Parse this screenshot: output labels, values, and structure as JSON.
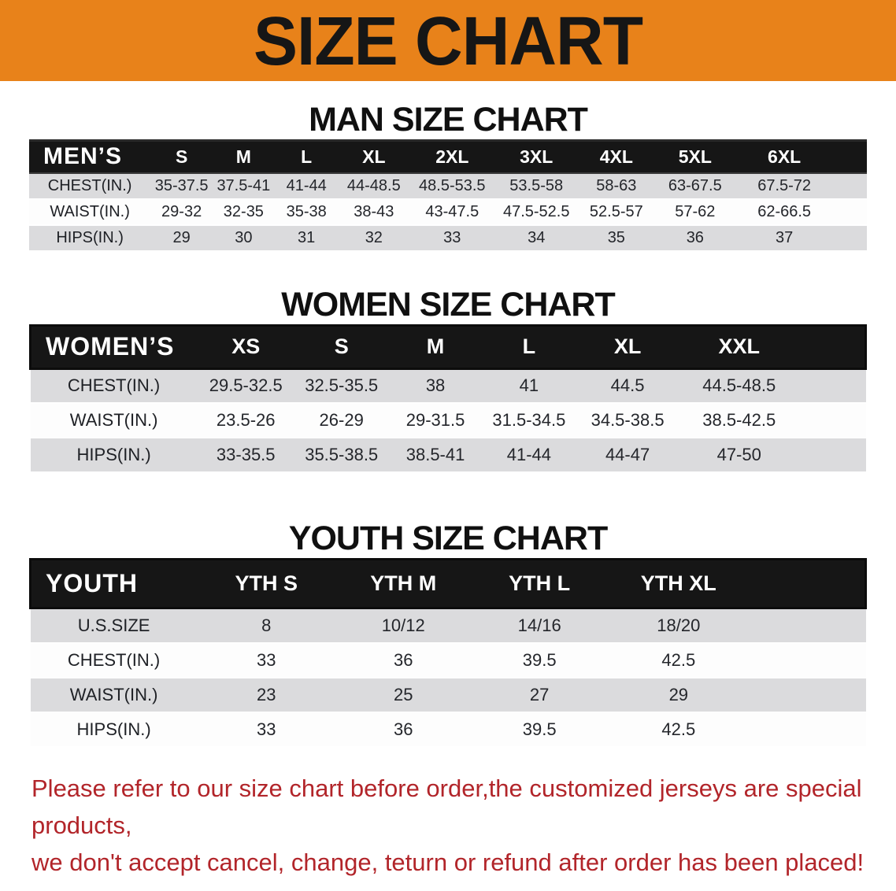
{
  "banner": {
    "title": "SIZE CHART"
  },
  "sections": [
    {
      "heading": "MAN SIZE CHART",
      "table": {
        "corner_label": "MEN’S",
        "columns": [
          "S",
          "M",
          "L",
          "XL",
          "2XL",
          "3XL",
          "4XL",
          "5XL",
          "6XL"
        ],
        "rows": [
          {
            "label": "CHEST(IN.)",
            "values": [
              "35-37.5",
              "37.5-41",
              "41-44",
              "44-48.5",
              "48.5-53.5",
              "53.5-58",
              "58-63",
              "63-67.5",
              "67.5-72"
            ]
          },
          {
            "label": "WAIST(IN.)",
            "values": [
              "29-32",
              "32-35",
              "35-38",
              "38-43",
              "43-47.5",
              "47.5-52.5",
              "52.5-57",
              "57-62",
              "62-66.5"
            ]
          },
          {
            "label": "HIPS(IN.)",
            "values": [
              "29",
              "30",
              "31",
              "32",
              "33",
              "34",
              "35",
              "36",
              "37"
            ]
          }
        ]
      }
    },
    {
      "heading": "WOMEN SIZE CHART",
      "table": {
        "corner_label": "WOMEN’S",
        "columns": [
          "XS",
          "S",
          "M",
          "L",
          "XL",
          "XXL"
        ],
        "rows": [
          {
            "label": "CHEST(IN.)",
            "values": [
              "29.5-32.5",
              "32.5-35.5",
              "38",
              "41",
              "44.5",
              "44.5-48.5"
            ]
          },
          {
            "label": "WAIST(IN.)",
            "values": [
              "23.5-26",
              "26-29",
              "29-31.5",
              "31.5-34.5",
              "34.5-38.5",
              "38.5-42.5"
            ]
          },
          {
            "label": "HIPS(IN.)",
            "values": [
              "33-35.5",
              "35.5-38.5",
              "38.5-41",
              "41-44",
              "44-47",
              "47-50"
            ]
          }
        ]
      }
    },
    {
      "heading": "YOUTH SIZE CHART",
      "table": {
        "corner_label": "YOUTH",
        "columns": [
          "YTH S",
          "YTH M",
          "YTH L",
          "YTH XL"
        ],
        "rows": [
          {
            "label": "U.S.SIZE",
            "values": [
              "8",
              "10/12",
              "14/16",
              "18/20"
            ]
          },
          {
            "label": "CHEST(IN.)",
            "values": [
              "33",
              "36",
              "39.5",
              "42.5"
            ]
          },
          {
            "label": "WAIST(IN.)",
            "values": [
              "23",
              "25",
              "27",
              "29"
            ]
          },
          {
            "label": "HIPS(IN.)",
            "values": [
              "33",
              "36",
              "39.5",
              "42.5"
            ]
          }
        ]
      }
    }
  ],
  "disclaimer": {
    "line1": "Please refer to our size chart before order,the customized jerseys are special products,",
    "line2": "we don't accept cancel, change, teturn or refund after order has been placed!"
  },
  "colors": {
    "banner_bg": "#E8821A",
    "banner_text": "#161616",
    "header_bar_bg": "#161616",
    "header_bar_text": "#FFFFFF",
    "row_alt_bg": "#DBDBDD",
    "row_bg": "#FDFDFD",
    "body_text": "#24262B",
    "disclaimer_text": "#B2252A",
    "page_bg": "#FFFFFF"
  }
}
